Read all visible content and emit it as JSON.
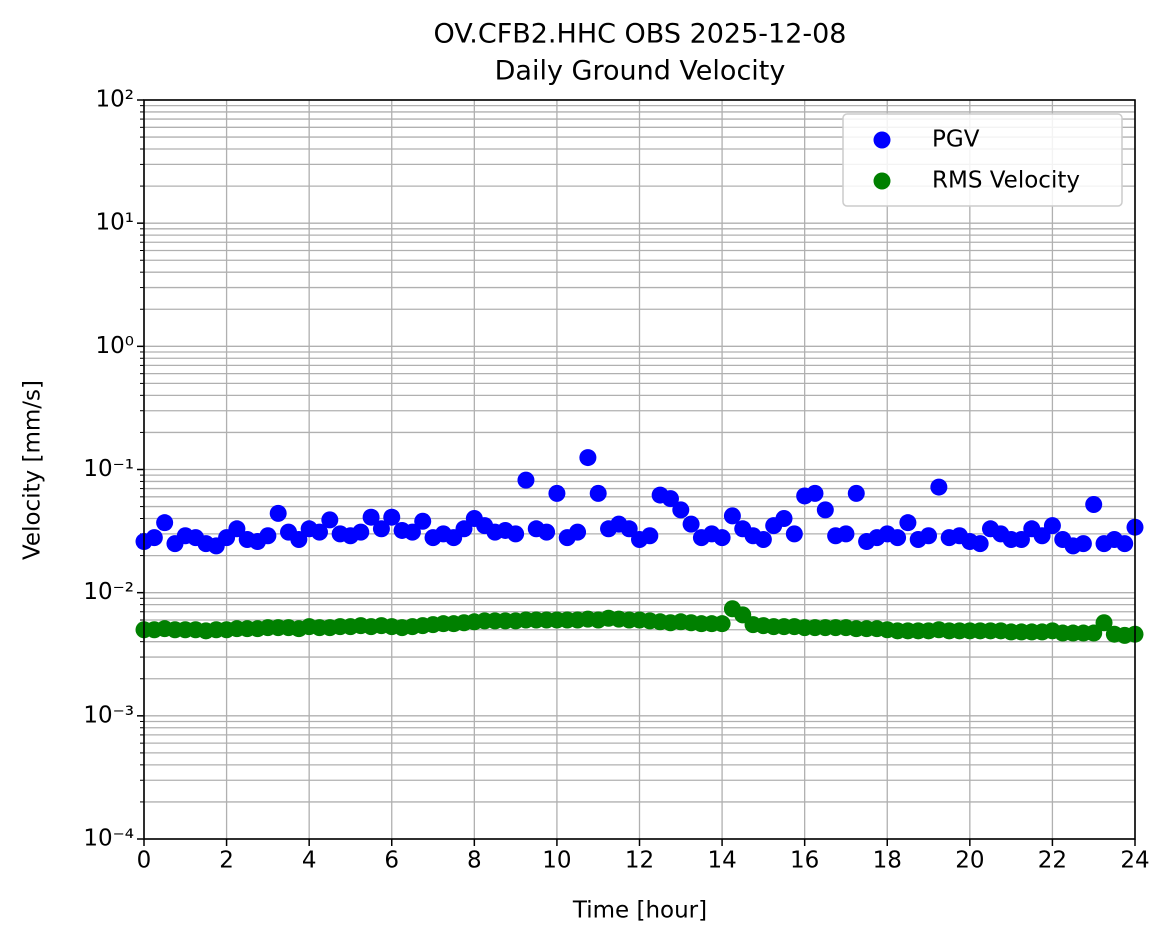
{
  "chart_data": {
    "type": "scatter",
    "title": "OV.CFB2.HHC OBS 2025-12-08",
    "subtitle": "Daily Ground Velocity",
    "x_label": "Time [hour]",
    "y_label": "Velocity [mm/s]",
    "y_scale": "log",
    "grid": true,
    "legend": "upper right",
    "xlim": [
      0,
      24
    ],
    "xticks": [
      0,
      2,
      4,
      6,
      8,
      10,
      12,
      14,
      16,
      18,
      20,
      22,
      24
    ],
    "ylim": [
      0.0001,
      100
    ],
    "yticks": [
      {
        "value": 0.0001,
        "label": "10⁻⁴"
      },
      {
        "value": 0.001,
        "label": "10⁻³"
      },
      {
        "value": 0.01,
        "label": "10⁻²"
      },
      {
        "value": 0.1,
        "label": "10⁻¹"
      },
      {
        "value": 1,
        "label": "10⁰"
      },
      {
        "value": 10,
        "label": "10¹"
      },
      {
        "value": 100,
        "label": "10²"
      }
    ],
    "x": [
      0,
      0.25,
      0.5,
      0.75,
      1,
      1.25,
      1.5,
      1.75,
      2,
      2.25,
      2.5,
      2.75,
      3,
      3.25,
      3.5,
      3.75,
      4,
      4.25,
      4.5,
      4.75,
      5,
      5.25,
      5.5,
      5.75,
      6,
      6.25,
      6.5,
      6.75,
      7,
      7.25,
      7.5,
      7.75,
      8,
      8.25,
      8.5,
      8.75,
      9,
      9.25,
      9.5,
      9.75,
      10,
      10.25,
      10.5,
      10.75,
      11,
      11.25,
      11.5,
      11.75,
      12,
      12.25,
      12.5,
      12.75,
      13,
      13.25,
      13.5,
      13.75,
      14,
      14.25,
      14.5,
      14.75,
      15,
      15.25,
      15.5,
      15.75,
      16,
      16.25,
      16.5,
      16.75,
      17,
      17.25,
      17.5,
      17.75,
      18,
      18.25,
      18.5,
      18.75,
      19,
      19.25,
      19.5,
      19.75,
      20,
      20.25,
      20.5,
      20.75,
      21,
      21.25,
      21.5,
      21.75,
      22,
      22.25,
      22.5,
      22.75,
      23,
      23.25,
      23.5,
      23.75,
      24
    ],
    "series": [
      {
        "name": "PGV",
        "color": "#0000ff",
        "values": [
          0.026,
          0.028,
          0.037,
          0.025,
          0.029,
          0.028,
          0.025,
          0.024,
          0.028,
          0.033,
          0.027,
          0.026,
          0.029,
          0.044,
          0.031,
          0.027,
          0.033,
          0.031,
          0.039,
          0.03,
          0.029,
          0.031,
          0.041,
          0.033,
          0.041,
          0.032,
          0.031,
          0.038,
          0.028,
          0.03,
          0.028,
          0.033,
          0.04,
          0.035,
          0.031,
          0.032,
          0.03,
          0.082,
          0.033,
          0.031,
          0.064,
          0.028,
          0.031,
          0.125,
          0.064,
          0.033,
          0.036,
          0.033,
          0.027,
          0.029,
          0.062,
          0.058,
          0.047,
          0.036,
          0.028,
          0.03,
          0.028,
          0.042,
          0.033,
          0.029,
          0.027,
          0.035,
          0.04,
          0.03,
          0.061,
          0.064,
          0.047,
          0.029,
          0.03,
          0.064,
          0.026,
          0.028,
          0.03,
          0.028,
          0.037,
          0.027,
          0.029,
          0.072,
          0.028,
          0.029,
          0.026,
          0.025,
          0.033,
          0.03,
          0.027,
          0.027,
          0.033,
          0.029,
          0.035,
          0.027,
          0.024,
          0.025,
          0.052,
          0.025,
          0.027,
          0.025,
          0.034
        ]
      },
      {
        "name": "RMS Velocity",
        "color": "#008000",
        "values": [
          0.005,
          0.005,
          0.0051,
          0.005,
          0.005,
          0.005,
          0.0049,
          0.005,
          0.005,
          0.0051,
          0.0051,
          0.0051,
          0.0052,
          0.0052,
          0.0052,
          0.0051,
          0.0053,
          0.0052,
          0.0052,
          0.0053,
          0.0053,
          0.0054,
          0.0053,
          0.0054,
          0.0053,
          0.0052,
          0.0053,
          0.0054,
          0.0055,
          0.0056,
          0.0056,
          0.0057,
          0.0058,
          0.0059,
          0.0059,
          0.0059,
          0.0059,
          0.006,
          0.006,
          0.006,
          0.006,
          0.006,
          0.006,
          0.0061,
          0.006,
          0.0062,
          0.0061,
          0.006,
          0.006,
          0.0059,
          0.0058,
          0.0057,
          0.0058,
          0.0057,
          0.0056,
          0.0056,
          0.0056,
          0.0074,
          0.0066,
          0.0055,
          0.0054,
          0.0053,
          0.0053,
          0.0053,
          0.0052,
          0.0052,
          0.0052,
          0.0052,
          0.0052,
          0.0051,
          0.0051,
          0.0051,
          0.005,
          0.0049,
          0.0049,
          0.0049,
          0.0049,
          0.005,
          0.0049,
          0.0049,
          0.0049,
          0.0049,
          0.0049,
          0.0049,
          0.0048,
          0.0048,
          0.0048,
          0.0048,
          0.0049,
          0.0047,
          0.0047,
          0.0047,
          0.0047,
          0.0057,
          0.0046,
          0.0045,
          0.0046
        ]
      }
    ]
  }
}
